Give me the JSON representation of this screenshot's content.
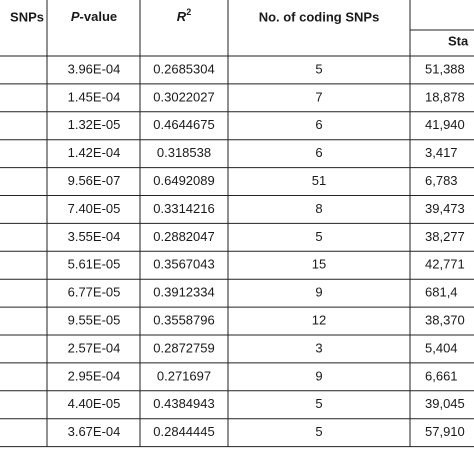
{
  "table": {
    "header": {
      "snps": "SNPs",
      "p_value_italic": "P",
      "p_value_rest": "-value",
      "r2_base": "R",
      "r2_sup": "2",
      "coding": "No. of coding SNPs",
      "start": "Sta"
    },
    "rows": [
      [
        "3.96E-04",
        "0.2685304",
        "5",
        "51,388"
      ],
      [
        "1.45E-04",
        "0.3022027",
        "7",
        "18,878"
      ],
      [
        "1.32E-05",
        "0.4644675",
        "6",
        "41,940"
      ],
      [
        "1.42E-04",
        "0.318538",
        "6",
        "3,417"
      ],
      [
        "9.56E-07",
        "0.6492089",
        "51",
        "6,783"
      ],
      [
        "7.40E-05",
        "0.3314216",
        "8",
        "39,473"
      ],
      [
        "3.55E-04",
        "0.2882047",
        "5",
        "38,277"
      ],
      [
        "5.61E-05",
        "0.3567043",
        "15",
        "42,771"
      ],
      [
        "6.77E-05",
        "0.3912334",
        "9",
        "681,4"
      ],
      [
        "9.55E-05",
        "0.3558796",
        "12",
        "38,370"
      ],
      [
        "2.57E-04",
        "0.2872759",
        "3",
        "5,404"
      ],
      [
        "2.95E-04",
        "0.271697",
        "9",
        "6,661"
      ],
      [
        "4.40E-05",
        "0.4384943",
        "5",
        "39,045"
      ],
      [
        "3.67E-04",
        "0.2844445",
        "5",
        "57,910"
      ]
    ]
  }
}
